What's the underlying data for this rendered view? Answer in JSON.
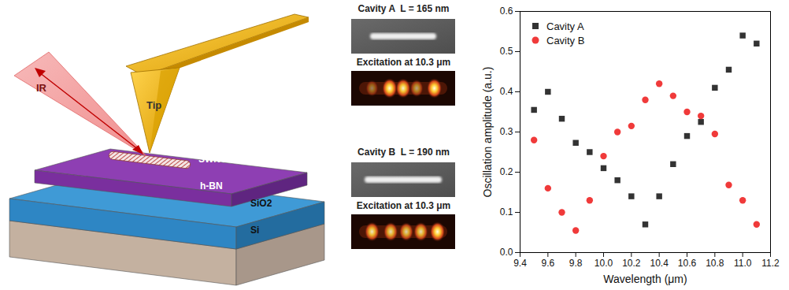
{
  "schematic": {
    "beam": "IR",
    "tip": "Tip",
    "sample": "SWNT",
    "layers": [
      "h-BN",
      "SiO2",
      "Si"
    ]
  },
  "panels": [
    {
      "title": "Cavity A  L = 165 nm",
      "caption": "Excitation at 10.3 μm"
    },
    {
      "title": "Cavity B  L = 190 nm",
      "caption": "Excitation at 10.3 μm"
    }
  ],
  "chart_data": {
    "type": "scatter",
    "xlabel": "Wavelength (μm)",
    "ylabel": "Oscillation amplitude (a.u.)",
    "xlim": [
      9.4,
      11.2
    ],
    "xticks": [
      9.4,
      9.6,
      9.8,
      {
        "value": 10,
        "label": "10.0"
      },
      10.2,
      10.4,
      10.6,
      10.8,
      {
        "value": 11,
        "label": "11.0"
      },
      11.2
    ],
    "ylim": [
      0,
      0.6
    ],
    "yticks": [
      {
        "value": 0,
        "label": "0.0"
      },
      0.1,
      0.2,
      0.3,
      0.4,
      0.5,
      0.6
    ],
    "legend": "top-left",
    "x": [
      9.5,
      9.6,
      9.7,
      9.8,
      9.9,
      10.0,
      10.1,
      10.2,
      10.3,
      10.4,
      10.5,
      10.6,
      10.7,
      10.8,
      10.9,
      11.0,
      11.1
    ],
    "series": [
      {
        "name": "Cavity A",
        "color": "#333333",
        "marker": "square",
        "values": [
          0.355,
          0.4,
          0.333,
          0.273,
          0.25,
          0.21,
          0.18,
          0.14,
          0.07,
          0.14,
          0.22,
          0.29,
          0.325,
          0.41,
          0.455,
          0.54,
          0.52
        ]
      },
      {
        "name": "Cavity B",
        "color": "#f03a3a",
        "marker": "circle",
        "values": [
          0.28,
          0.16,
          0.1,
          0.055,
          0.13,
          0.24,
          0.3,
          0.315,
          0.38,
          0.42,
          0.39,
          0.35,
          0.34,
          0.295,
          0.168,
          0.13,
          0.07
        ]
      }
    ]
  }
}
